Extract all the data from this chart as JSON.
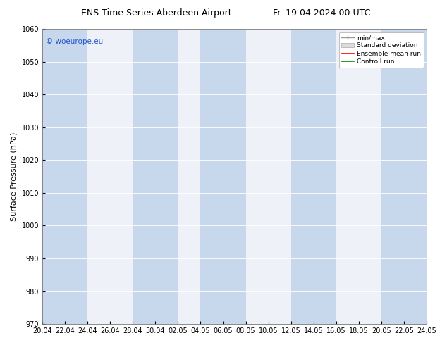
{
  "title_left": "ENS Time Series Aberdeen Airport",
  "title_right": "Fr. 19.04.2024 00 UTC",
  "ylabel": "Surface Pressure (hPa)",
  "ylim": [
    970,
    1060
  ],
  "yticks": [
    970,
    980,
    990,
    1000,
    1010,
    1020,
    1030,
    1040,
    1050,
    1060
  ],
  "xtick_labels": [
    "20.04",
    "22.04",
    "24.04",
    "26.04",
    "28.04",
    "30.04",
    "02.05",
    "04.05",
    "06.05",
    "08.05",
    "10.05",
    "12.05",
    "14.05",
    "16.05",
    "18.05",
    "20.05",
    "22.05",
    "24.05"
  ],
  "watermark": "© woeurope.eu",
  "watermark_color": "#2255cc",
  "bg_color": "#ffffff",
  "plot_bg_color": "#eef2f8",
  "band_color": "#c8d8ec",
  "band_alpha": 1.0,
  "legend_entries": [
    "min/max",
    "Standard deviation",
    "Ensemble mean run",
    "Controll run"
  ],
  "legend_colors_line": [
    "#999999",
    "#bbbbbb",
    "#ff0000",
    "#008800"
  ],
  "tick_label_fontsize": 7,
  "axis_label_fontsize": 8,
  "title_fontsize": 9
}
